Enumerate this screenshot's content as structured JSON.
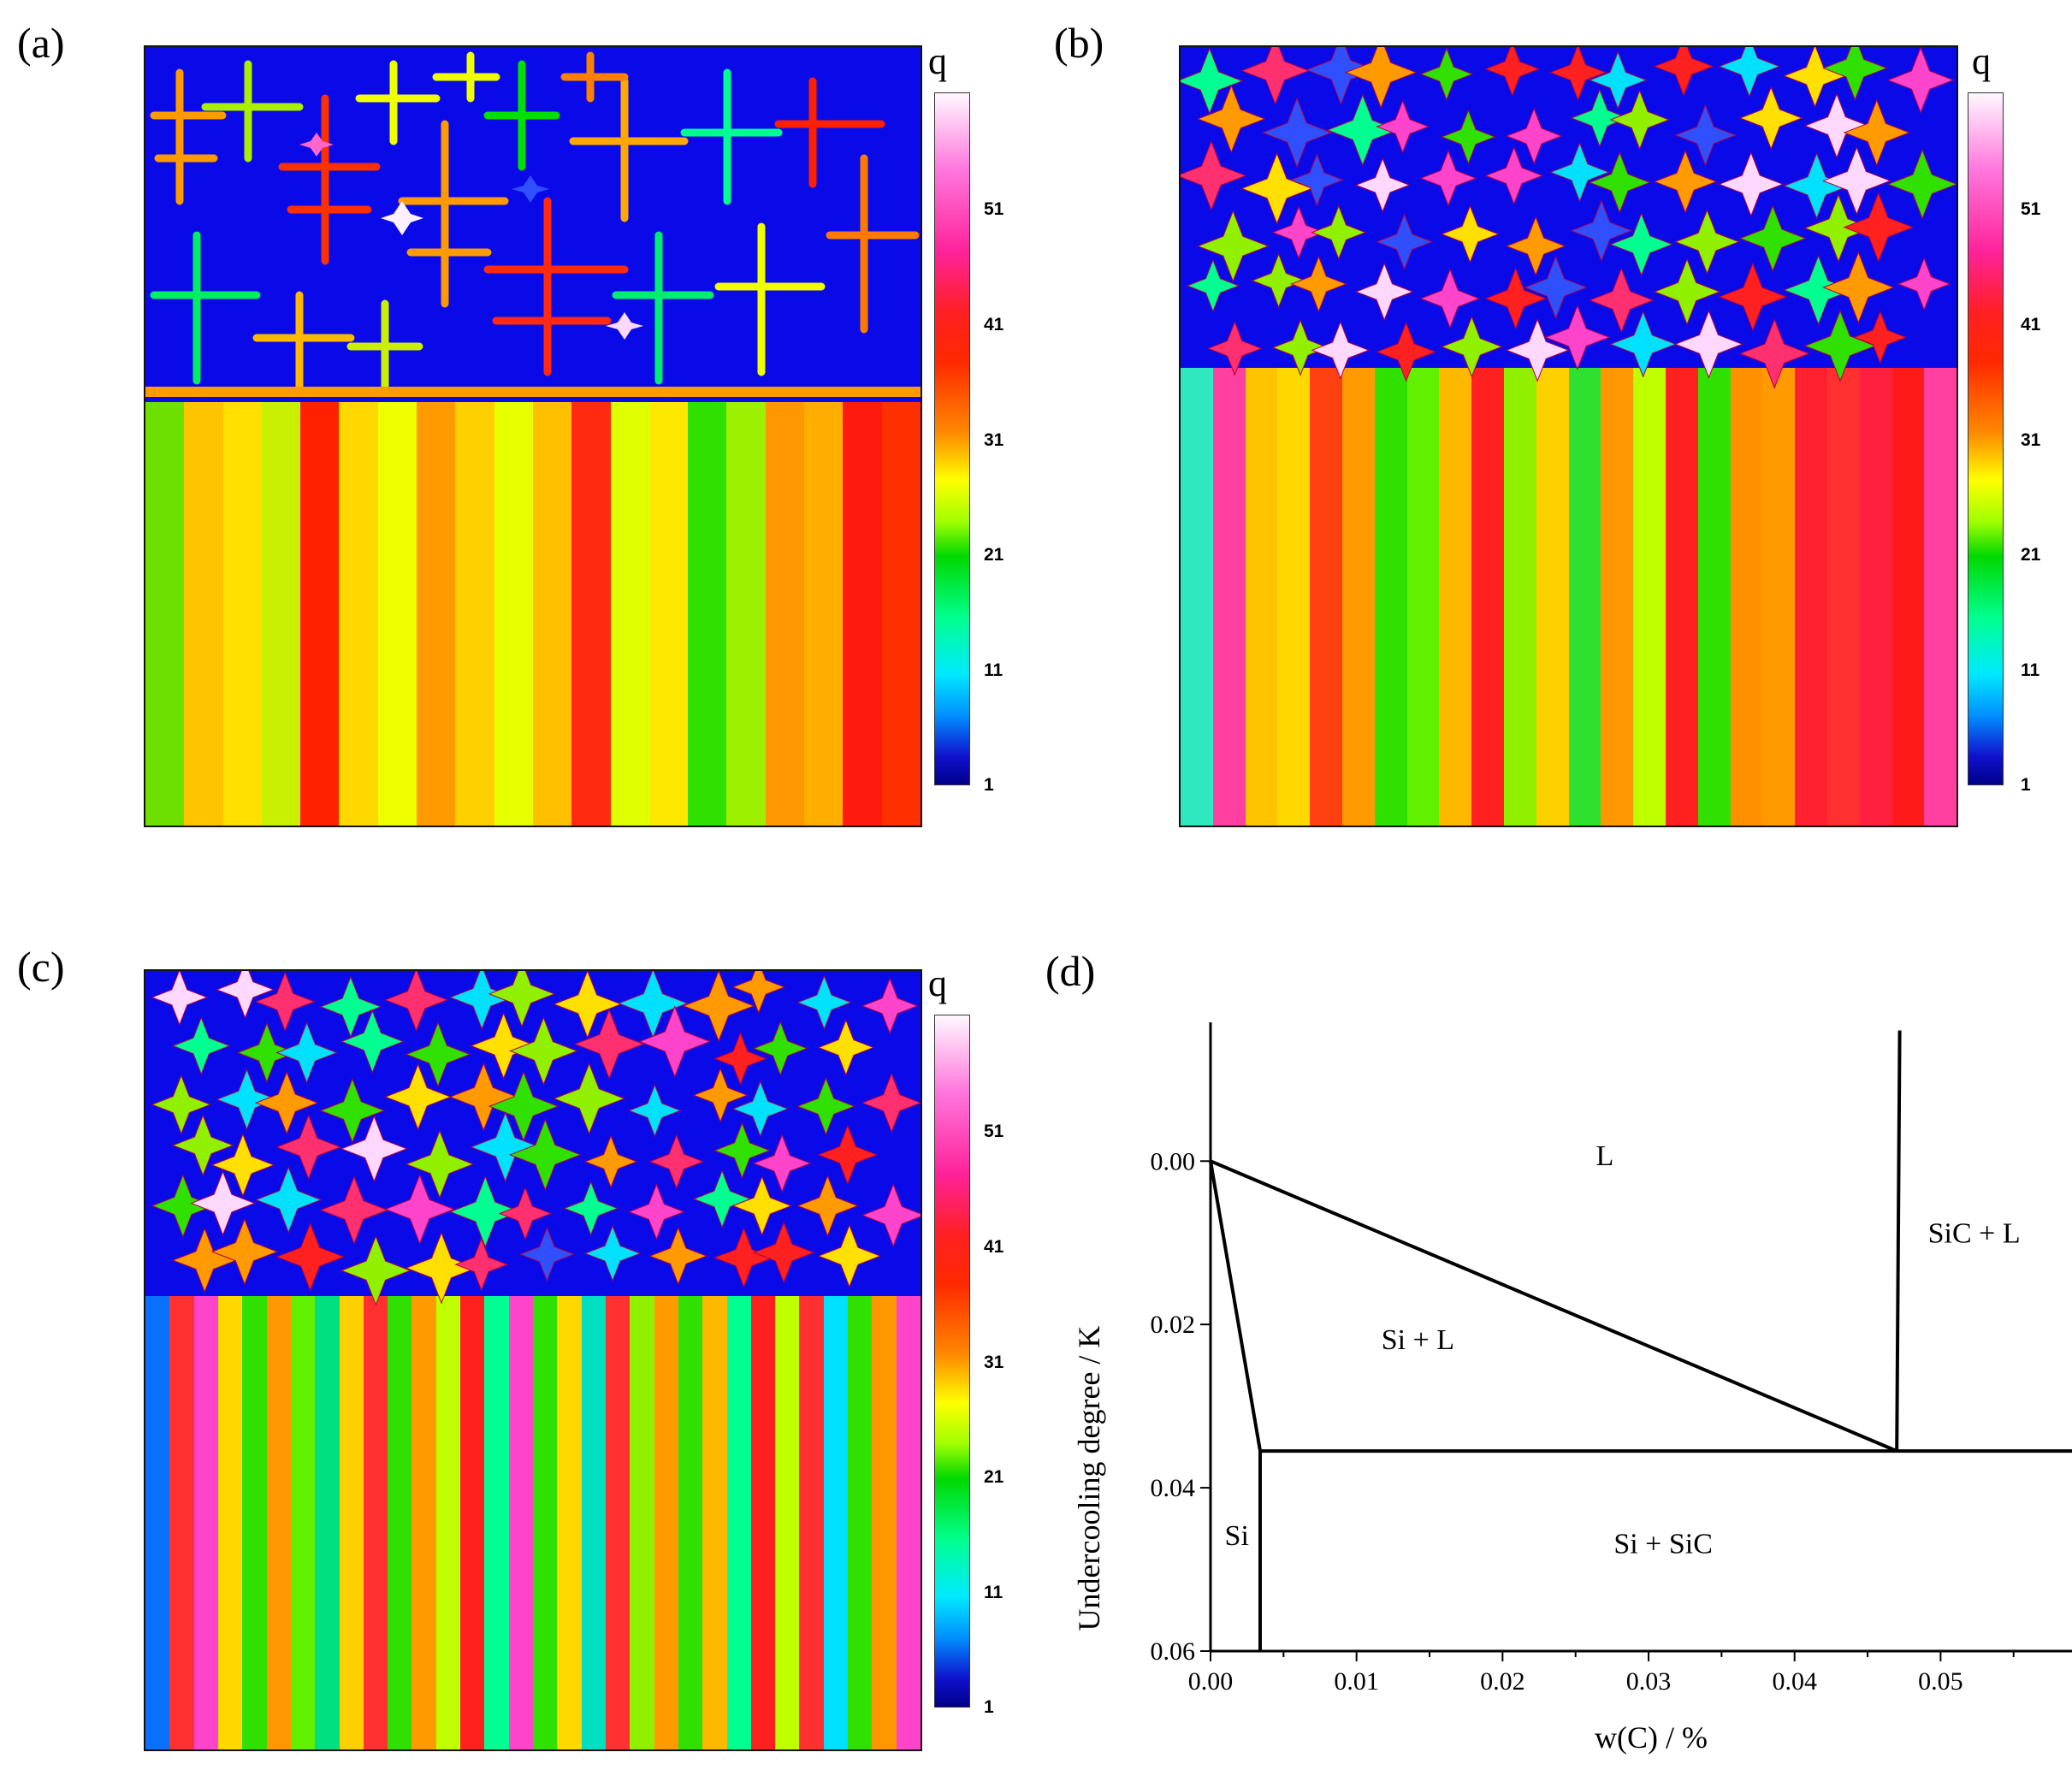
{
  "panels": [
    {
      "label": "(a)",
      "colorbar": {
        "title": "q",
        "ticks": [
          "51",
          "41",
          "31",
          "21",
          "11",
          "1"
        ]
      }
    },
    {
      "label": "(b)",
      "colorbar": {
        "title": "q",
        "ticks": [
          "51",
          "41",
          "31",
          "21",
          "11",
          "1"
        ]
      }
    },
    {
      "label": "(c)",
      "colorbar": {
        "title": "q",
        "ticks": [
          "51",
          "41",
          "31",
          "21",
          "11",
          "1"
        ]
      }
    },
    {
      "label": "(d)"
    }
  ],
  "chart_data": {
    "type": "phase-diagram",
    "xlabel": "w(C) / %",
    "ylabel": "Undercooling degree / K",
    "xlim": [
      0,
      0.059
    ],
    "ylim": [
      0.06,
      -0.017
    ],
    "x_ticks": [
      "0.00",
      "0.01",
      "0.02",
      "0.03",
      "0.04",
      "0.05"
    ],
    "y_ticks": [
      "0.00",
      "0.02",
      "0.04",
      "0.06"
    ],
    "lines": [
      {
        "name": "liquidus-L",
        "points": [
          [
            0.0,
            0.0
          ],
          [
            0.047,
            0.0355
          ]
        ]
      },
      {
        "name": "solidus-Si",
        "points": [
          [
            0.0,
            0.0
          ],
          [
            0.0034,
            0.0355
          ]
        ]
      },
      {
        "name": "eutectic-line",
        "points": [
          [
            0.0034,
            0.0355
          ],
          [
            0.059,
            0.0355
          ]
        ]
      },
      {
        "name": "Si-solvus",
        "points": [
          [
            0.0034,
            0.0355
          ],
          [
            0.0034,
            0.06
          ]
        ]
      },
      {
        "name": "SiC-boundary",
        "points": [
          [
            0.047,
            0.0355
          ],
          [
            0.0472,
            -0.016
          ]
        ]
      }
    ],
    "regions": [
      {
        "label": "L",
        "x": 0.027,
        "y": 0.0005
      },
      {
        "label": "SiC + L",
        "x": 0.0523,
        "y": 0.01
      },
      {
        "label": "Si + L",
        "x": 0.0142,
        "y": 0.023
      },
      {
        "label": "Si",
        "x": 0.0018,
        "y": 0.047
      },
      {
        "label": "Si + SiC",
        "x": 0.031,
        "y": 0.048
      }
    ]
  }
}
